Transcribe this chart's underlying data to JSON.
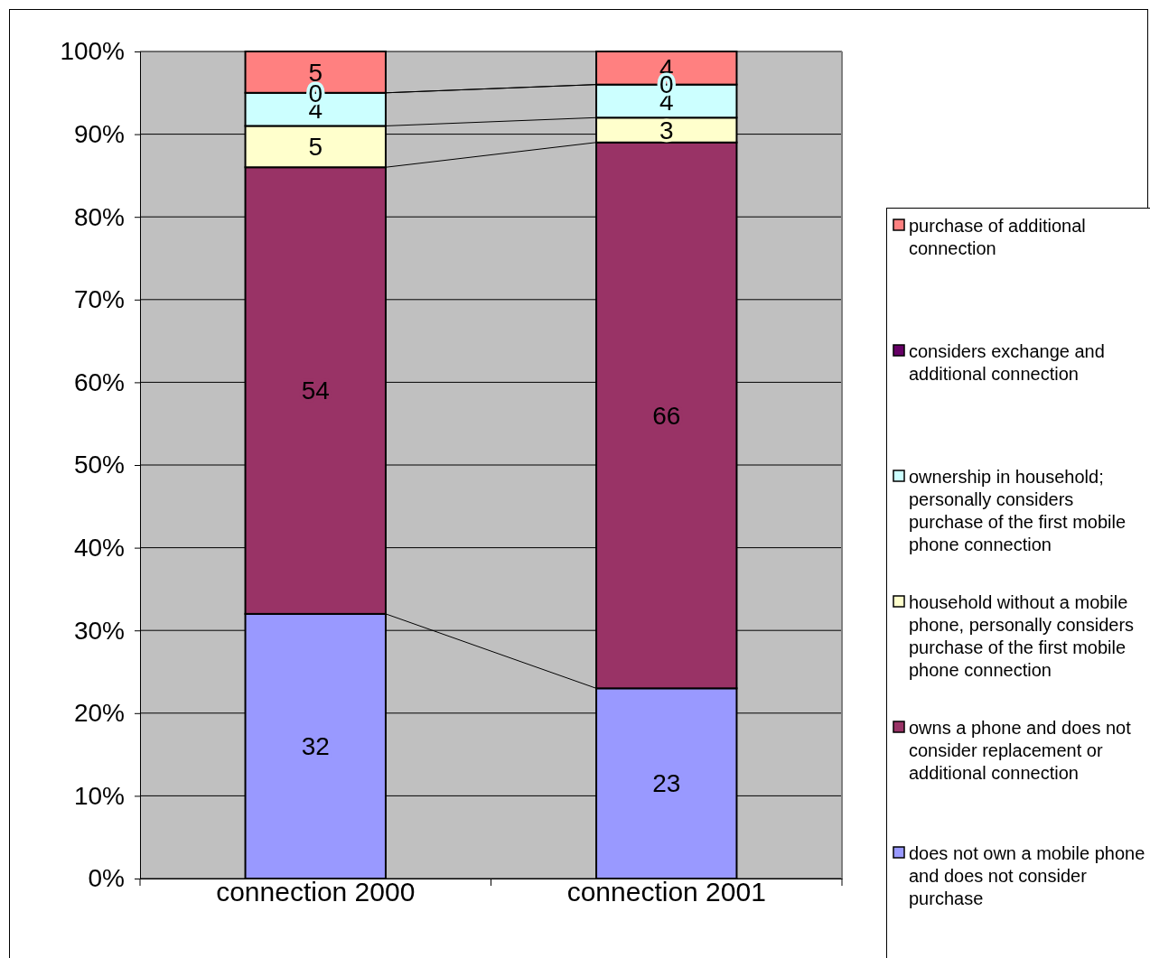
{
  "chart_data": {
    "type": "bar",
    "stacked": true,
    "categories": [
      "connection 2000",
      "connection 2001"
    ],
    "series": [
      {
        "name": "does not own a mobile phone and does not consider purchase",
        "color": "#9999ff",
        "values": [
          32,
          23
        ]
      },
      {
        "name": "owns a phone and does not consider replacement or additional connection",
        "color": "#993366",
        "values": [
          54,
          66
        ]
      },
      {
        "name": "household without a mobile phone, personally considers purchase of the first mobile phone connection",
        "color": "#ffffcc",
        "values": [
          5,
          3
        ]
      },
      {
        "name": "ownership in household; personally considers purchase of the first mobile phone connection",
        "color": "#ccffff",
        "values": [
          4,
          4
        ]
      },
      {
        "name": "considers exchange and additional connection",
        "color": "#660066",
        "values": [
          0,
          0
        ]
      },
      {
        "name": "purchase of additional connection",
        "color": "#ff8080",
        "values": [
          5,
          4
        ]
      }
    ],
    "ylim": [
      0,
      100
    ],
    "yticks": [
      {
        "value": 0,
        "label": "0%"
      },
      {
        "value": 10,
        "label": "10%"
      },
      {
        "value": 20,
        "label": "20%"
      },
      {
        "value": 30,
        "label": "30%"
      },
      {
        "value": 40,
        "label": "40%"
      },
      {
        "value": 50,
        "label": "50%"
      },
      {
        "value": 60,
        "label": "60%"
      },
      {
        "value": 70,
        "label": "70%"
      },
      {
        "value": 80,
        "label": "80%"
      },
      {
        "value": 90,
        "label": "90%"
      },
      {
        "value": 100,
        "label": "100%"
      }
    ],
    "grid": "y",
    "data_labels": true,
    "legend": "right"
  }
}
